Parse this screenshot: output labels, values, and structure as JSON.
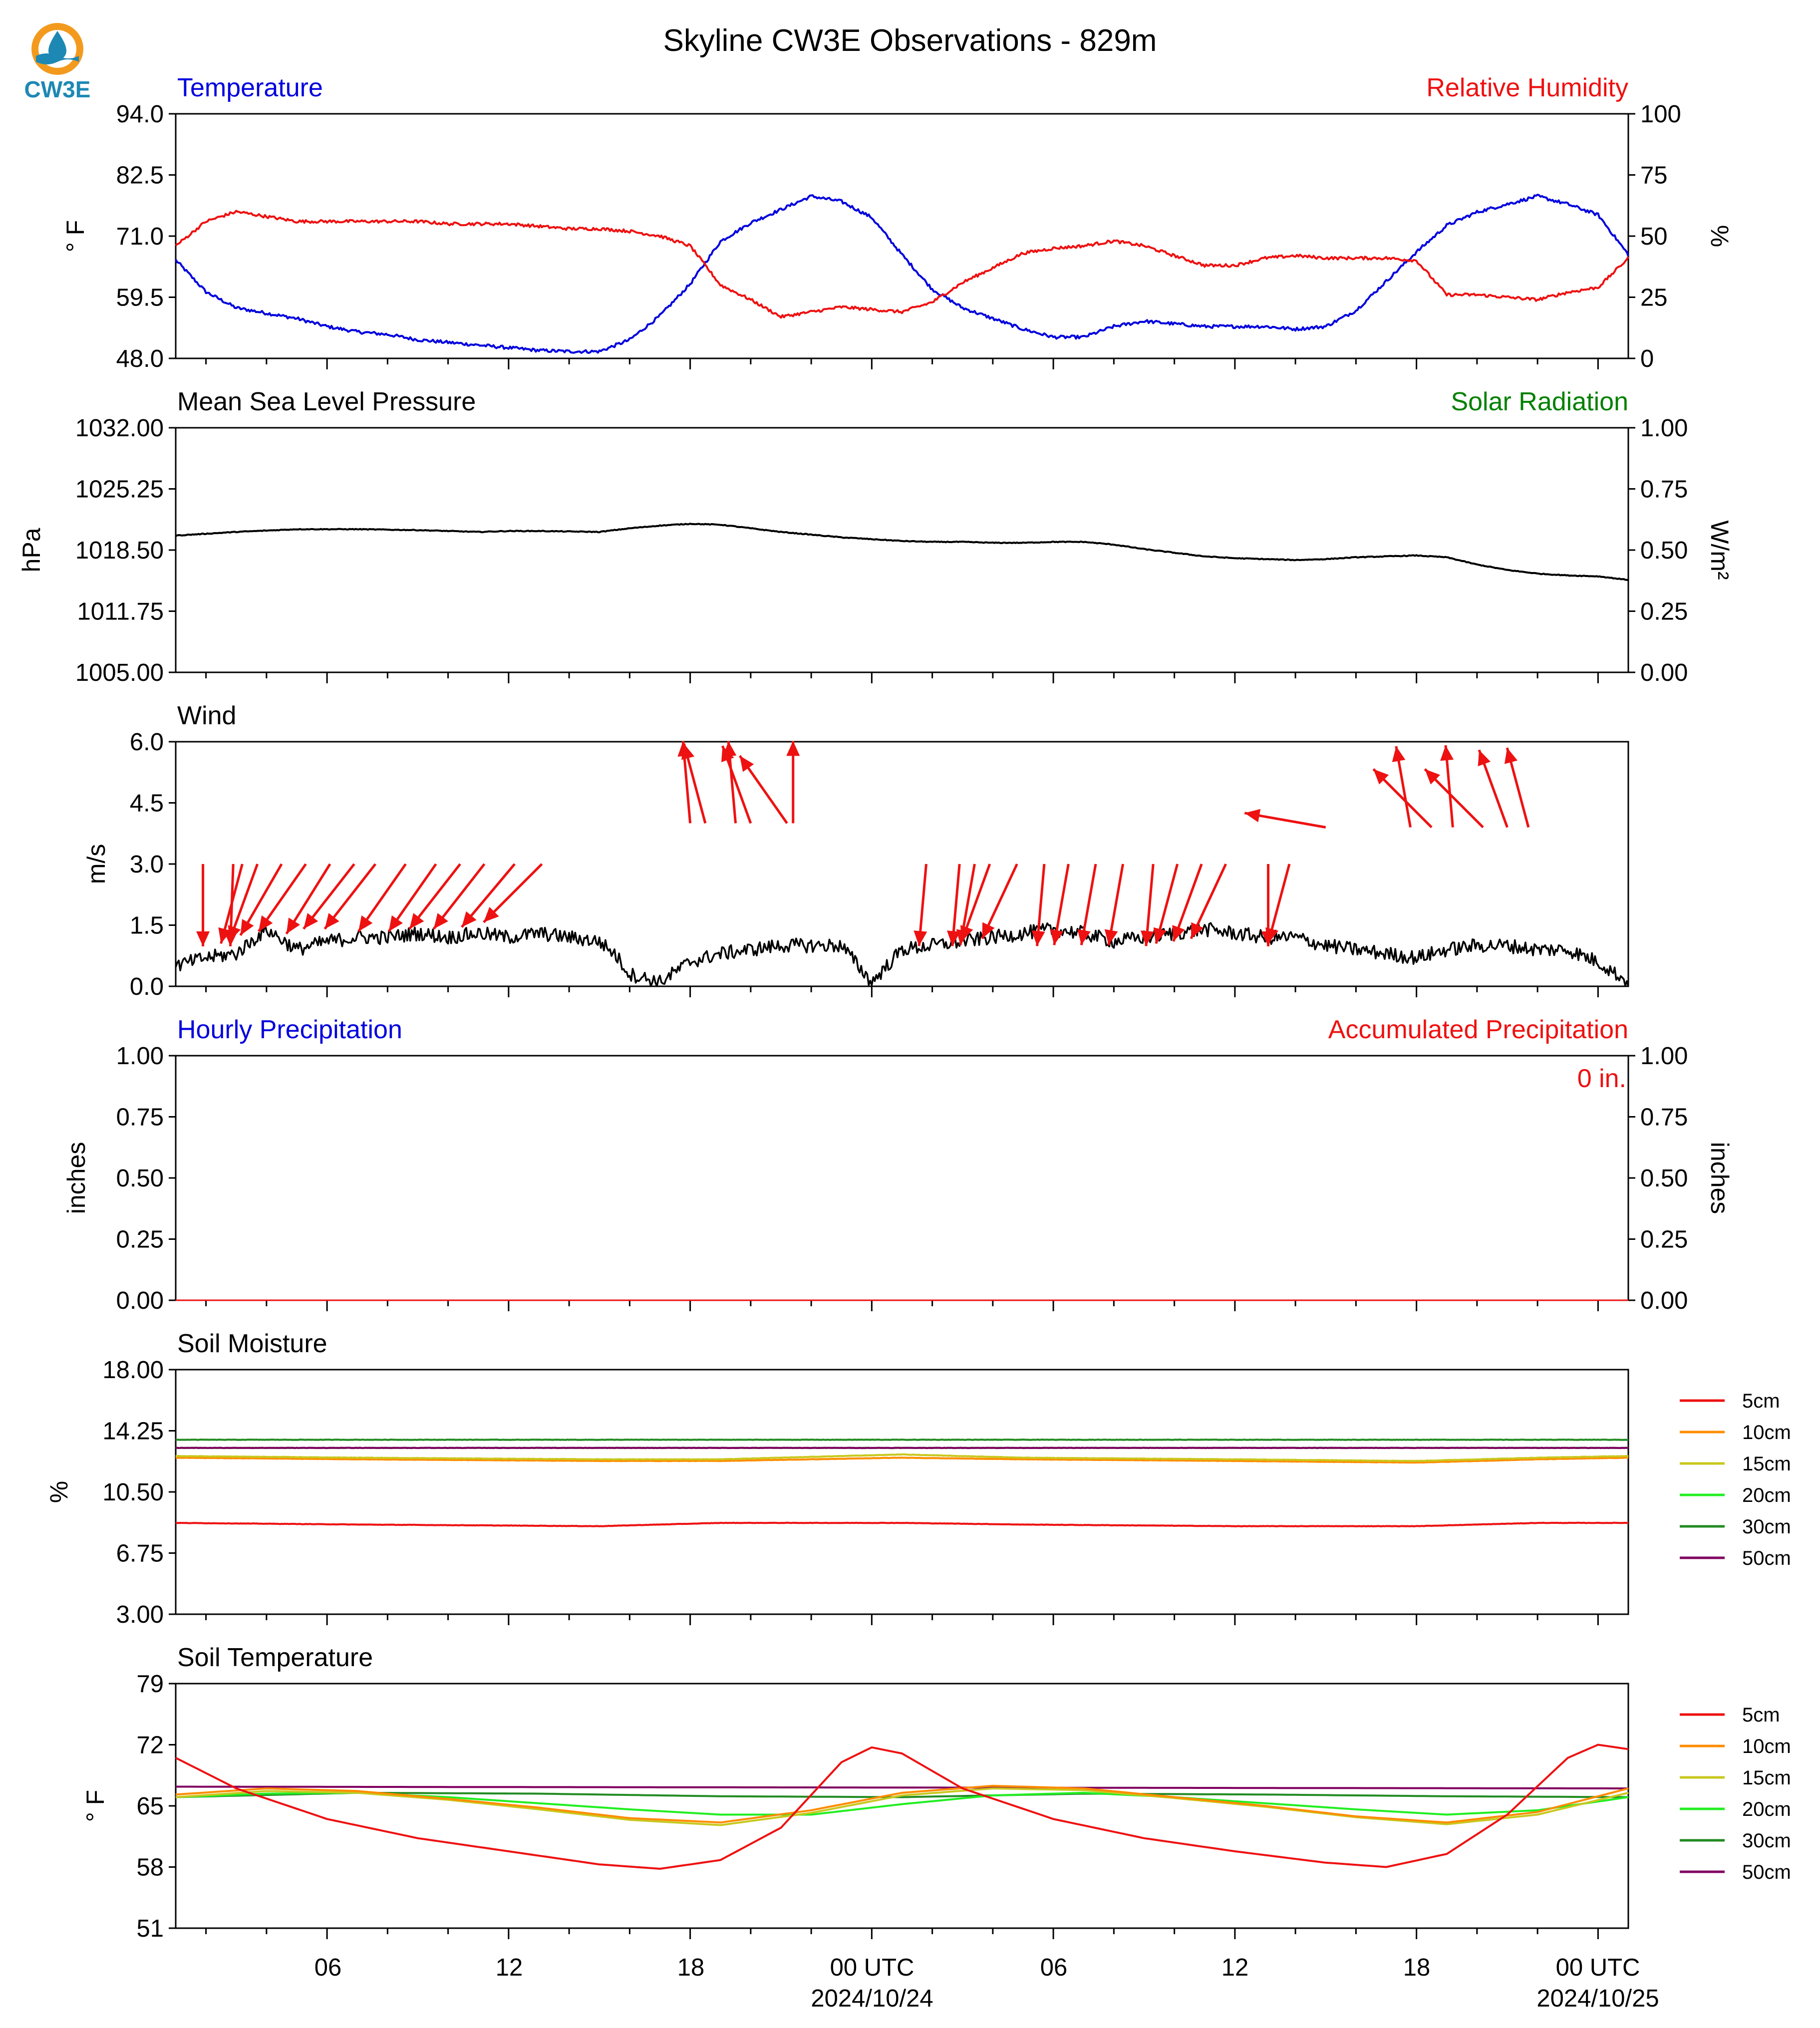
{
  "page": {
    "title": "Skyline CW3E Observations - 829m",
    "logo_text": "CW3E"
  },
  "time_axis": {
    "tick_labels": [
      "06",
      "12",
      "18",
      "00 UTC",
      "06",
      "12",
      "18",
      "00 UTC"
    ],
    "tick_hours": [
      6,
      12,
      18,
      24,
      30,
      36,
      42,
      48
    ],
    "date_labels": [
      {
        "hour": 24,
        "text": "2024/10/24"
      },
      {
        "hour": 48,
        "text": "2024/10/25"
      }
    ],
    "xlim_hours": [
      1,
      49
    ]
  },
  "colors": {
    "temperature": "#0000dd",
    "humidity": "#ee1111",
    "pressure": "#000000",
    "solar": "#008000",
    "wind_arrow": "#ee1111",
    "precip_hourly": "#0000dd",
    "precip_accum": "#ee1111",
    "5cm": "#ee1111",
    "10cm": "#ff8c00",
    "15cm": "#c8c81e",
    "20cm": "#22ee22",
    "30cm": "#228b22",
    "50cm": "#800060"
  },
  "panels": {
    "temp": {
      "left_title": "Temperature",
      "right_title": "Relative Humidity",
      "left_ylabel": "° F",
      "right_ylabel": "%",
      "left_ticks": [
        "94.0",
        "82.5",
        "71.0",
        "59.5",
        "48.0"
      ],
      "right_ticks": [
        "100",
        "75",
        "50",
        "25",
        "0"
      ]
    },
    "pressure": {
      "left_title": "Mean Sea Level Pressure",
      "right_title": "Solar Radiation",
      "left_ylabel": "hPa",
      "right_ylabel": "W/m²",
      "left_ticks": [
        "1032.00",
        "1025.25",
        "1018.50",
        "1011.75",
        "1005.00"
      ],
      "right_ticks": [
        "1.00",
        "0.75",
        "0.50",
        "0.25",
        "0.00"
      ]
    },
    "wind": {
      "left_title": "Wind",
      "left_ylabel": "m/s",
      "left_ticks": [
        "6.0",
        "4.5",
        "3.0",
        "1.5",
        "0.0"
      ]
    },
    "precip": {
      "left_title": "Hourly Precipitation",
      "right_title": "Accumulated Precipitation",
      "left_ylabel": "inches",
      "right_ylabel": "inches",
      "accum_text": "0 in.",
      "left_ticks": [
        "1.00",
        "0.75",
        "0.50",
        "0.25",
        "0.00"
      ],
      "right_ticks": [
        "1.00",
        "0.75",
        "0.50",
        "0.25",
        "0.00"
      ]
    },
    "soil_moisture": {
      "left_title": "Soil Moisture",
      "left_ylabel": "%",
      "left_ticks": [
        "18.00",
        "14.25",
        "10.50",
        "6.75",
        "3.00"
      ],
      "legend": [
        "5cm",
        "10cm",
        "15cm",
        "20cm",
        "30cm",
        "50cm"
      ]
    },
    "soil_temp": {
      "left_title": "Soil Temperature",
      "left_ylabel": "° F",
      "left_ticks": [
        "79",
        "72",
        "65",
        "58",
        "51"
      ],
      "legend": [
        "5cm",
        "10cm",
        "15cm",
        "20cm",
        "30cm",
        "50cm"
      ]
    }
  },
  "chart_data": [
    {
      "type": "line",
      "title": "Temperature / Relative Humidity",
      "x_unit": "hours since 2024/10/23 00 UTC",
      "ylim": [
        48,
        94
      ],
      "y2lim": [
        0,
        100
      ],
      "series": [
        {
          "name": "Temperature",
          "axis": "left",
          "x": [
            1,
            2,
            3,
            4,
            5,
            6,
            7,
            8,
            9,
            10,
            11,
            12,
            13,
            14,
            15,
            16,
            17,
            18,
            19,
            20,
            21,
            22,
            23,
            24,
            25,
            26,
            27,
            28,
            29,
            30,
            31,
            32,
            33,
            34,
            35,
            36,
            37,
            38,
            39,
            40,
            41,
            42,
            43,
            44,
            45,
            46,
            47,
            48,
            49
          ],
          "y": [
            66.5,
            60.5,
            57.5,
            56.5,
            55.5,
            54,
            53,
            52.5,
            51.5,
            51,
            50.5,
            50,
            49.5,
            49.3,
            49.3,
            51.5,
            56,
            62,
            70,
            73.5,
            76,
            78.5,
            77.5,
            74.5,
            67.5,
            61,
            57.5,
            55.5,
            53.5,
            52,
            52,
            54,
            55,
            54.5,
            54,
            54,
            54,
            53.5,
            54,
            57,
            62.5,
            68,
            73,
            75.5,
            77,
            78.5,
            77,
            75,
            67.5
          ]
        },
        {
          "name": "Relative Humidity",
          "axis": "right",
          "x": [
            1,
            2,
            3,
            4,
            5,
            6,
            7,
            8,
            9,
            10,
            11,
            12,
            13,
            14,
            15,
            16,
            17,
            18,
            19,
            20,
            21,
            22,
            23,
            24,
            25,
            26,
            27,
            28,
            29,
            30,
            31,
            32,
            33,
            34,
            35,
            36,
            37,
            38,
            39,
            40,
            41,
            42,
            43,
            44,
            45,
            46,
            47,
            48,
            49
          ],
          "y": [
            46,
            56,
            60,
            58,
            56,
            56,
            56,
            56,
            56,
            55,
            55,
            55,
            54,
            53,
            53,
            52,
            50,
            46,
            30,
            24,
            17,
            19,
            21,
            20,
            19,
            23,
            31,
            37,
            43,
            45,
            46,
            48,
            46,
            42,
            38,
            38,
            41,
            42,
            41,
            41,
            41,
            40,
            26,
            26,
            25,
            24,
            27,
            29,
            41
          ]
        }
      ]
    },
    {
      "type": "line",
      "title": "Mean Sea Level Pressure / Solar Radiation",
      "ylim": [
        1005,
        1032
      ],
      "y2lim": [
        0,
        1
      ],
      "series": [
        {
          "name": "Mean Sea Level Pressure",
          "axis": "left",
          "x": [
            1,
            3,
            5,
            7,
            9,
            11,
            12,
            13,
            15,
            16,
            17,
            18,
            19,
            20,
            21,
            22,
            23,
            24,
            25,
            26,
            27,
            28,
            29,
            30,
            31,
            32,
            33,
            34,
            35,
            36,
            37,
            38,
            39,
            40,
            41,
            42,
            43,
            44,
            45,
            46,
            47,
            48,
            49
          ],
          "y": [
            1020.1,
            1020.5,
            1020.8,
            1020.8,
            1020.7,
            1020.5,
            1020.6,
            1020.6,
            1020.5,
            1020.9,
            1021.2,
            1021.4,
            1021.3,
            1020.9,
            1020.5,
            1020.2,
            1019.9,
            1019.7,
            1019.5,
            1019.4,
            1019.4,
            1019.3,
            1019.3,
            1019.4,
            1019.4,
            1019.1,
            1018.6,
            1018.2,
            1017.8,
            1017.6,
            1017.5,
            1017.4,
            1017.5,
            1017.7,
            1017.8,
            1017.9,
            1017.7,
            1016.9,
            1016.3,
            1015.9,
            1015.7,
            1015.6,
            1015.2
          ]
        }
      ]
    },
    {
      "type": "line",
      "title": "Wind",
      "ylim": [
        0,
        6
      ],
      "series": [
        {
          "name": "Wind speed",
          "x": [
            1,
            2,
            3,
            4,
            5,
            6,
            7,
            8,
            9,
            10,
            11,
            12,
            13,
            14,
            15,
            15.5,
            16,
            17,
            18,
            19,
            20,
            21,
            22,
            23,
            24,
            25,
            26,
            27,
            28,
            29,
            30,
            31,
            32,
            33,
            34,
            35,
            36,
            37,
            38,
            39,
            40,
            41,
            42,
            43,
            44,
            45,
            46,
            47,
            48,
            49
          ],
          "y": [
            0.5,
            0.7,
            0.8,
            1.4,
            0.9,
            1.1,
            1.2,
            1.2,
            1.3,
            1.2,
            1.3,
            1.2,
            1.3,
            1.2,
            1.1,
            0.8,
            0.3,
            0.1,
            0.6,
            0.8,
            0.9,
            1.0,
            1.0,
            1.0,
            0.1,
            0.9,
            1.0,
            1.1,
            1.2,
            1.3,
            1.4,
            1.3,
            1.1,
            1.2,
            1.3,
            1.4,
            1.3,
            1.2,
            1.2,
            1.0,
            0.9,
            0.8,
            0.7,
            0.9,
            1.0,
            1.0,
            0.9,
            0.9,
            0.6,
            0.1
          ]
        }
      ]
    },
    {
      "type": "line",
      "title": "Hourly Precipitation / Accumulated Precipitation",
      "ylim": [
        0,
        1
      ],
      "y2lim": [
        0,
        1
      ],
      "series": [
        {
          "name": "Hourly Precipitation",
          "x": [
            1,
            49
          ],
          "y": [
            0,
            0
          ]
        },
        {
          "name": "Accumulated Precipitation",
          "x": [
            1,
            49
          ],
          "y": [
            0,
            0
          ]
        }
      ]
    },
    {
      "type": "line",
      "title": "Soil Moisture",
      "ylim": [
        3,
        18
      ],
      "series": [
        {
          "name": "5cm",
          "x": [
            1,
            7,
            15,
            19,
            25,
            29,
            36,
            42,
            46,
            49
          ],
          "y": [
            8.6,
            8.5,
            8.4,
            8.6,
            8.6,
            8.5,
            8.4,
            8.4,
            8.6,
            8.6
          ]
        },
        {
          "name": "10cm",
          "x": [
            1,
            7,
            15,
            19,
            25,
            29,
            36,
            42,
            46,
            49
          ],
          "y": [
            12.6,
            12.5,
            12.4,
            12.4,
            12.6,
            12.5,
            12.4,
            12.3,
            12.5,
            12.6
          ]
        },
        {
          "name": "15cm",
          "x": [
            1,
            7,
            15,
            19,
            25,
            29,
            36,
            42,
            46,
            49
          ],
          "y": [
            12.7,
            12.6,
            12.5,
            12.5,
            12.8,
            12.6,
            12.5,
            12.4,
            12.6,
            12.7
          ]
        },
        {
          "name": "20cm",
          "x": [
            1,
            49
          ],
          "y": [
            13.2,
            13.2
          ]
        },
        {
          "name": "30cm",
          "x": [
            1,
            49
          ],
          "y": [
            13.7,
            13.7
          ]
        },
        {
          "name": "50cm",
          "x": [
            1,
            49
          ],
          "y": [
            13.2,
            13.2
          ]
        }
      ]
    },
    {
      "type": "line",
      "title": "Soil Temperature",
      "ylim": [
        51,
        79
      ],
      "series": [
        {
          "name": "5cm",
          "x": [
            1,
            3,
            6,
            9,
            12,
            15,
            17,
            19,
            21,
            23,
            24,
            25,
            27,
            30,
            33,
            36,
            39,
            41,
            43,
            45,
            47,
            48,
            49
          ],
          "y": [
            70.5,
            67,
            63.5,
            61.3,
            59.8,
            58.3,
            57.8,
            58.8,
            62.5,
            70,
            71.7,
            71,
            67,
            63.5,
            61.3,
            59.8,
            58.5,
            58,
            59.5,
            64,
            70.5,
            72,
            71.5
          ]
        },
        {
          "name": "10cm",
          "x": [
            1,
            4,
            7,
            10,
            13,
            16,
            19,
            22,
            25,
            28,
            31,
            34,
            37,
            40,
            43,
            46,
            49
          ],
          "y": [
            66.3,
            67,
            66.7,
            65.8,
            64.8,
            63.6,
            63.1,
            64.5,
            66.5,
            67.3,
            67,
            66,
            65,
            63.8,
            63.1,
            64.3,
            67
          ]
        },
        {
          "name": "15cm",
          "x": [
            1,
            4,
            7,
            10,
            13,
            16,
            19,
            22,
            25,
            28,
            31,
            34,
            37,
            40,
            43,
            46,
            49
          ],
          "y": [
            66,
            66.7,
            66.5,
            65.7,
            64.6,
            63.4,
            62.8,
            64.2,
            66.2,
            67,
            66.8,
            65.9,
            64.9,
            63.7,
            62.9,
            64,
            66.5
          ]
        },
        {
          "name": "20cm",
          "x": [
            1,
            4,
            7,
            10,
            13,
            16,
            19,
            22,
            25,
            28,
            31,
            34,
            37,
            40,
            43,
            46,
            49
          ],
          "y": [
            66,
            66.4,
            66.5,
            66,
            65.3,
            64.6,
            64,
            64,
            65.2,
            66.2,
            66.5,
            66,
            65.3,
            64.6,
            64,
            64.5,
            66
          ]
        },
        {
          "name": "30cm",
          "x": [
            1,
            7,
            13,
            19,
            25,
            31,
            37,
            43,
            49
          ],
          "y": [
            66,
            66.5,
            66.4,
            66.1,
            66,
            66.4,
            66.3,
            66.1,
            66
          ]
        },
        {
          "name": "50cm",
          "x": [
            1,
            49
          ],
          "y": [
            67.2,
            67
          ]
        }
      ]
    }
  ]
}
